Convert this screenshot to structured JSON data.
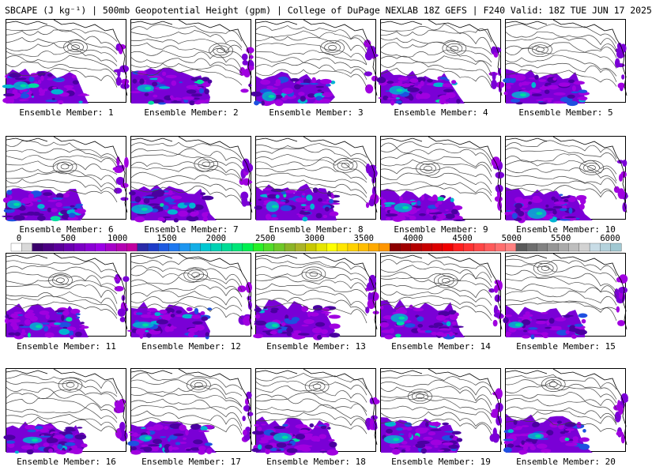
{
  "header": {
    "title": "SBCAPE (J kg⁻¹) | 500mb Geopotential Height (gpm) | College of DuPage NEXLAB 18Z GEFS | F240 Valid: 18Z TUE JUN 17 2025"
  },
  "members": [
    {
      "label": "Ensemble Member: 1"
    },
    {
      "label": "Ensemble Member: 2"
    },
    {
      "label": "Ensemble Member: 3"
    },
    {
      "label": "Ensemble Member: 4"
    },
    {
      "label": "Ensemble Member: 5"
    },
    {
      "label": "Ensemble Member: 6"
    },
    {
      "label": "Ensemble Member: 7"
    },
    {
      "label": "Ensemble Member: 8"
    },
    {
      "label": "Ensemble Member: 9"
    },
    {
      "label": "Ensemble Member: 10"
    },
    {
      "label": "Ensemble Member: 11"
    },
    {
      "label": "Ensemble Member: 12"
    },
    {
      "label": "Ensemble Member: 13"
    },
    {
      "label": "Ensemble Member: 14"
    },
    {
      "label": "Ensemble Member: 15"
    },
    {
      "label": "Ensemble Member: 16"
    },
    {
      "label": "Ensemble Member: 17"
    },
    {
      "label": "Ensemble Member: 18"
    },
    {
      "label": "Ensemble Member: 19"
    },
    {
      "label": "Ensemble Member: 20"
    }
  ],
  "colorbar": {
    "labels": [
      "0",
      "500",
      "1000",
      "1500",
      "2000",
      "2500",
      "3000",
      "3500",
      "4000",
      "4500",
      "5000",
      "5500",
      "6000"
    ],
    "colors": [
      "#ffffff",
      "#d9d9d9",
      "#3a006b",
      "#4b0082",
      "#5a0099",
      "#6a00b0",
      "#7b00c4",
      "#8b00d6",
      "#9c00e6",
      "#a600c9",
      "#b300b3",
      "#c000a0",
      "#2a2aa8",
      "#1e3cc8",
      "#1e5ae0",
      "#1e78f0",
      "#1e96f0",
      "#14aee6",
      "#00c8d2",
      "#00d2b4",
      "#00dc96",
      "#00e678",
      "#00f050",
      "#28f028",
      "#50dc28",
      "#6ec828",
      "#8cb428",
      "#aab428",
      "#c8c800",
      "#e6e600",
      "#ffff00",
      "#ffe600",
      "#ffd200",
      "#ffbe00",
      "#ffaa00",
      "#ff9600",
      "#8c0000",
      "#a00000",
      "#b40000",
      "#c80000",
      "#dc0000",
      "#f00000",
      "#ff1e1e",
      "#ff3232",
      "#ff4646",
      "#ff5a5a",
      "#ff6e6e",
      "#ff8282",
      "#5a5a5a",
      "#6e6e6e",
      "#828282",
      "#969696",
      "#aaaaaa",
      "#bebebe",
      "#d2d2d2",
      "#c8dce6",
      "#b4d2dc",
      "#a0c8d2"
    ]
  },
  "map": {
    "cape_colors": [
      "#7a00d6",
      "#a000e0",
      "#4a00a0",
      "#1e50e0",
      "#00b4d2",
      "#00dca0",
      "#00f050"
    ]
  }
}
